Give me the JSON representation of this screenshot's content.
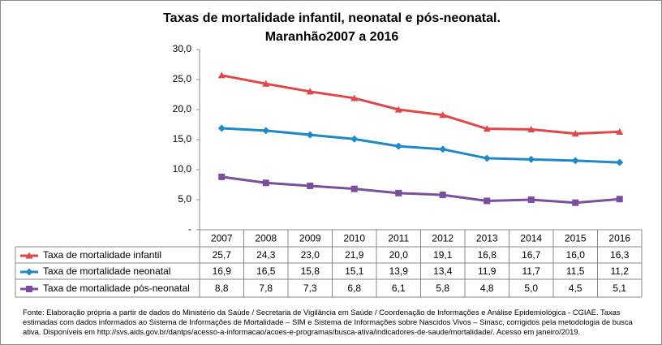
{
  "chart_data": {
    "type": "line",
    "title": [
      "Taxas de mortalidade infantil, neonatal e pós-neonatal.",
      "Maranhão2007 a 2016"
    ],
    "categories": [
      "2007",
      "2008",
      "2009",
      "2010",
      "2011",
      "2012",
      "2013",
      "2014",
      "2015",
      "2016"
    ],
    "series": [
      {
        "name": "Taxa de mortalidade infantil",
        "color": "#e04848",
        "marker": "triangle",
        "values": [
          25.7,
          24.3,
          23.0,
          21.9,
          20.0,
          19.1,
          16.8,
          16.7,
          16.0,
          16.3
        ],
        "value_labels": [
          "25,7",
          "24,3",
          "23,0",
          "21,9",
          "20,0",
          "19,1",
          "16,8",
          "16,7",
          "16,0",
          "16,3"
        ]
      },
      {
        "name": "Taxa de mortalidade neonatal",
        "color": "#1e88c8",
        "marker": "diamond",
        "values": [
          16.9,
          16.5,
          15.8,
          15.1,
          13.9,
          13.4,
          11.9,
          11.7,
          11.5,
          11.2
        ],
        "value_labels": [
          "16,9",
          "16,5",
          "15,8",
          "15,1",
          "13,9",
          "13,4",
          "11,9",
          "11,7",
          "11,5",
          "11,2"
        ]
      },
      {
        "name": "Taxa de mortalidade pós-neonatal",
        "color": "#7b4f9e",
        "marker": "square",
        "values": [
          8.8,
          7.8,
          7.3,
          6.8,
          6.1,
          5.8,
          4.8,
          5.0,
          4.5,
          5.1
        ],
        "value_labels": [
          "8,8",
          "7,8",
          "7,3",
          "6,8",
          "6,1",
          "5,8",
          "4,8",
          "5,0",
          "4,5",
          "5,1"
        ]
      }
    ],
    "ylim": [
      0,
      30
    ],
    "yticks": [
      {
        "value": 0,
        "label": "-"
      },
      {
        "value": 5,
        "label": "5,0"
      },
      {
        "value": 10,
        "label": "10,0"
      },
      {
        "value": 15,
        "label": "15,0"
      },
      {
        "value": 20,
        "label": "20,0"
      },
      {
        "value": 25,
        "label": "25,0"
      },
      {
        "value": 30,
        "label": "30,0"
      }
    ],
    "note": "Fonte: Elaboração própria a partir de dados do Ministério da Saúde / Secretaria de Vigilância em Saúde / Coordenação de Informações e Análise Epidemiológica - CGIAE. Taxas estimadas com dados informados ao Sistema de Informações de Mortalidade – SIM e Sistema de Informações sobre Nascidos Vivos – Sinasc, corrigidos pela metodologia de busca ativa. Disponíveis em http://svs.aids.gov.br/dantps/acesso-a-informacao/acoes-e-programas/busca-ativa/indicadores-de-saude/mortalidade/. Acesso em janeiro/2019."
  }
}
